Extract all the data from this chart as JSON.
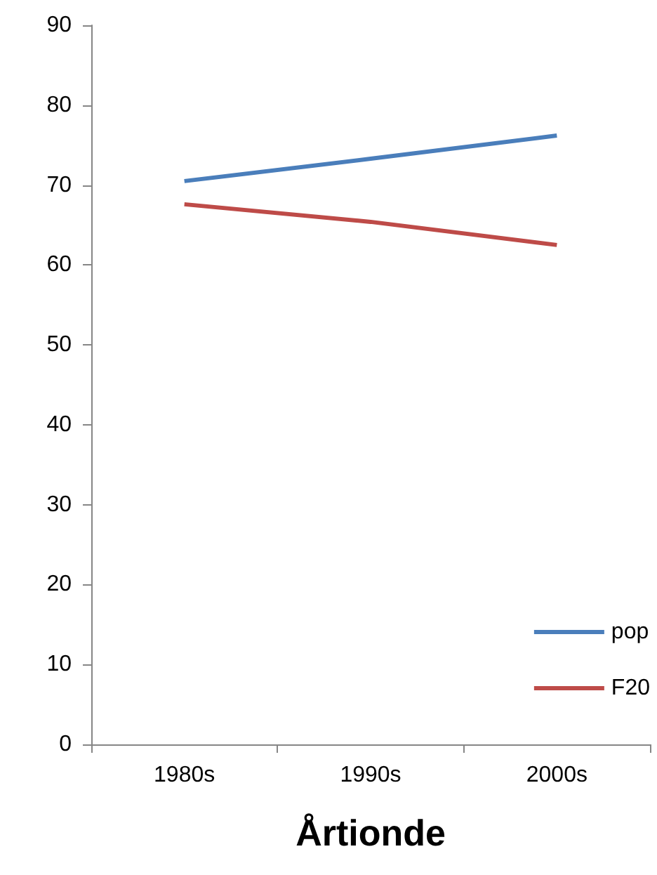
{
  "chart_data": {
    "type": "line",
    "xlabel": "Årtionde",
    "categories": [
      "1980s",
      "1990s",
      "2000s"
    ],
    "series": [
      {
        "name": "pop",
        "color": "#4a7ebb",
        "values": [
          70.5,
          73.3,
          76.2
        ]
      },
      {
        "name": "F20",
        "color": "#be4b48",
        "values": [
          67.6,
          65.4,
          62.5
        ]
      }
    ],
    "ylim": [
      0,
      90
    ],
    "yticks": [
      0,
      10,
      20,
      30,
      40,
      50,
      60,
      70,
      80,
      90
    ],
    "grid": false,
    "legend": "bottom right",
    "marker": "none"
  }
}
